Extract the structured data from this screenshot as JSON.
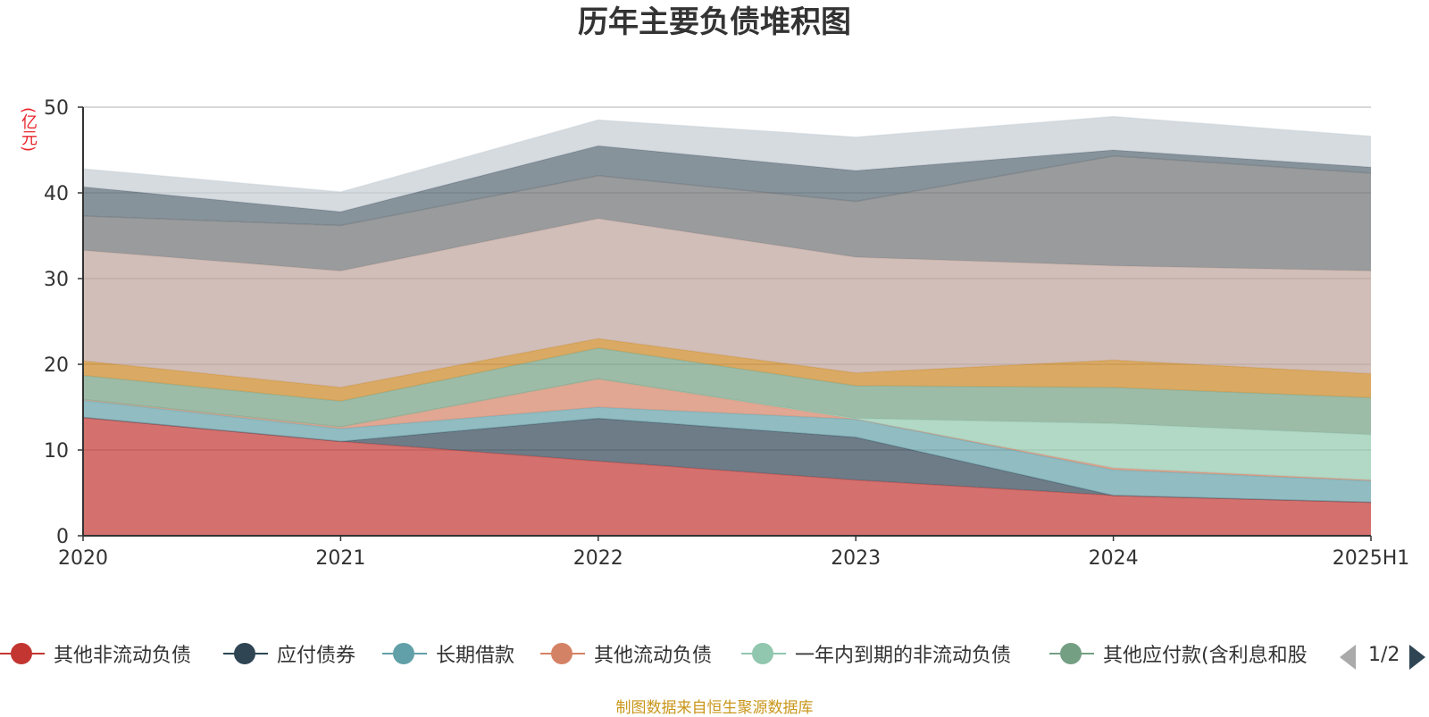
{
  "title": "历年主要负债堆积图",
  "unit": "(亿元)",
  "source": "制图数据来自恒生聚源数据库",
  "pager": {
    "text": "1/2"
  },
  "chart_data": {
    "type": "area",
    "stacked": true,
    "categories": [
      "2020",
      "2021",
      "2022",
      "2023",
      "2024",
      "2025H1"
    ],
    "ylim": [
      0,
      50
    ],
    "yticks": [
      0,
      10,
      20,
      30,
      40,
      50
    ],
    "grid": true,
    "legend_position": "bottom",
    "series": [
      {
        "name": "其他非流动负债",
        "color": "#c23531",
        "values": [
          13.8,
          11.0,
          8.7,
          6.5,
          4.7,
          3.9
        ]
      },
      {
        "name": "应付债券",
        "color": "#2f4554",
        "values": [
          0,
          0,
          5.0,
          5.0,
          0,
          0
        ]
      },
      {
        "name": "长期借款",
        "color": "#61a0a8",
        "values": [
          2.0,
          1.5,
          1.3,
          2.1,
          3.0,
          2.5
        ]
      },
      {
        "name": "其他流动负债",
        "color": "#d48265",
        "values": [
          0.1,
          0.2,
          3.3,
          0,
          0.2,
          0.1
        ]
      },
      {
        "name": "一年内到期的非流动负债",
        "color": "#91c7ae",
        "values": [
          0,
          0,
          0,
          0.1,
          5.2,
          5.3
        ]
      },
      {
        "name": "其他应付款(含利息和股",
        "color": "#749f83",
        "values": [
          2.8,
          3.0,
          3.6,
          3.8,
          4.2,
          4.3
        ]
      },
      {
        "name": "",
        "color": "#ca8622",
        "values": [
          1.7,
          1.6,
          1.1,
          1.5,
          3.2,
          2.8
        ]
      },
      {
        "name": "",
        "color": "#bda29a",
        "values": [
          12.9,
          13.6,
          14.0,
          13.5,
          11.0,
          12.0
        ]
      },
      {
        "name": "",
        "color": "#6e7074",
        "values": [
          4.0,
          5.3,
          5.0,
          6.5,
          12.8,
          11.4
        ]
      },
      {
        "name": "",
        "color": "#546570",
        "values": [
          3.4,
          1.6,
          3.5,
          3.6,
          0.7,
          0.7
        ]
      },
      {
        "name": "",
        "color": "#c4ccd3",
        "values": [
          2.1,
          2.3,
          3.0,
          3.9,
          3.9,
          3.6
        ]
      }
    ]
  }
}
